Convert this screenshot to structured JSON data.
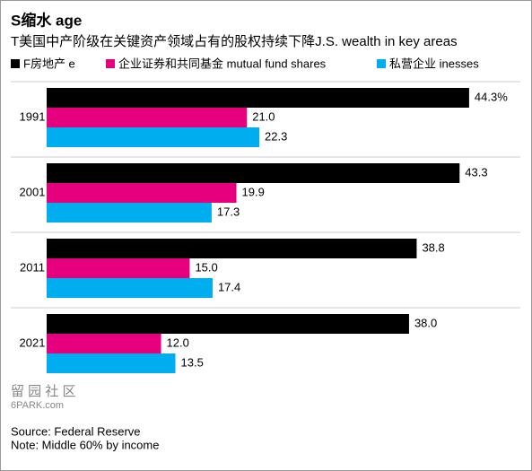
{
  "chart_data": {
    "type": "hbar",
    "title": "S缩水 age",
    "subtitle": "T美国中产阶级在关键资产领域占有的股权持续下降J.S. wealth in key areas",
    "categories": [
      "1991",
      "2001",
      "2011",
      "2021"
    ],
    "series": [
      {
        "name": "F房地产 e",
        "color": "#000000",
        "values": [
          44.3,
          43.3,
          38.8,
          38.0
        ],
        "value_labels": [
          "44.3%",
          "43.3",
          "38.8",
          "38.0"
        ]
      },
      {
        "name": "企业证券和共同基金 mutual fund shares",
        "color": "#e6007e",
        "values": [
          21.0,
          19.9,
          15.0,
          12.0
        ],
        "value_labels": [
          "21.0",
          "19.9",
          "15.0",
          "12.0"
        ]
      },
      {
        "name": "私营企业 inesses",
        "color": "#00aeef",
        "values": [
          22.3,
          17.3,
          17.4,
          13.5
        ],
        "value_labels": [
          "22.3",
          "17.3",
          "17.4",
          "13.5"
        ]
      }
    ],
    "watermark": [
      "留 园 社 区",
      "6PARK.com"
    ],
    "source": "Source: Federal Reserve",
    "note": "Note: Middle 60% by income"
  }
}
